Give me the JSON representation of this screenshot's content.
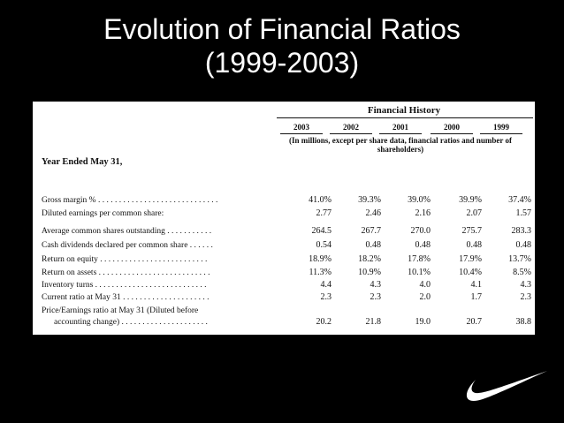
{
  "slide": {
    "title_line1": "Evolution of Financial Ratios",
    "title_line2": "(1999-2003)"
  },
  "table": {
    "heading": "Financial History",
    "years": [
      "2003",
      "2002",
      "2001",
      "2000",
      "1999"
    ],
    "units_note": "(In millions, except per share data, financial ratios and number of shareholders)",
    "year_ended_label": "Year Ended May 31,",
    "rows": [
      {
        "label": "Gross margin % . . . . . . . . . . . . . . . . . . . . . . . . . . . . .",
        "values": [
          "41.0%",
          "39.3%",
          "39.0%",
          "39.9%",
          "37.4%"
        ]
      },
      {
        "label": "Diluted earnings per common share:",
        "values": [
          "2.77",
          "2.46",
          "2.16",
          "2.07",
          "1.57"
        ]
      },
      {
        "label": "Average common shares outstanding . . . . . . . . . . .",
        "values": [
          "264.5",
          "267.7",
          "270.0",
          "275.7",
          "283.3"
        ]
      },
      {
        "label": "Cash dividends declared per common share . . . . . .",
        "values": [
          "0.54",
          "0.48",
          "0.48",
          "0.48",
          "0.48"
        ]
      },
      {
        "label": "Return on equity . . . . . . . . . . . . . . . . . . . . . . . . . .",
        "values": [
          "18.9%",
          "18.2%",
          "17.8%",
          "17.9%",
          "13.7%"
        ]
      },
      {
        "label": "Return on assets . . . . . . . . . . . . . . . . . . . . . . . . . . .",
        "values": [
          "11.3%",
          "10.9%",
          "10.1%",
          "10.4%",
          "8.5%"
        ]
      },
      {
        "label": "Inventory turns . . . . . . . . . . . . . . . . . . . . . . . . . . .",
        "values": [
          "4.4",
          "4.3",
          "4.0",
          "4.1",
          "4.3"
        ]
      },
      {
        "label": "Current ratio at May 31 . . . . . . . . . . . . . . . . . . . . .",
        "values": [
          "2.3",
          "2.3",
          "2.0",
          "1.7",
          "2.3"
        ]
      },
      {
        "label": "Price/Earnings ratio at May 31 (Diluted before",
        "values": [
          "",
          "",
          "",
          "",
          ""
        ]
      },
      {
        "label": "accounting change) . . . . . . . . . . . . . . . . . . . . .",
        "values": [
          "20.2",
          "21.8",
          "19.0",
          "20.7",
          "38.8"
        ]
      }
    ]
  },
  "logo": {
    "icon": "swoosh-icon",
    "color": "#ffffff"
  }
}
